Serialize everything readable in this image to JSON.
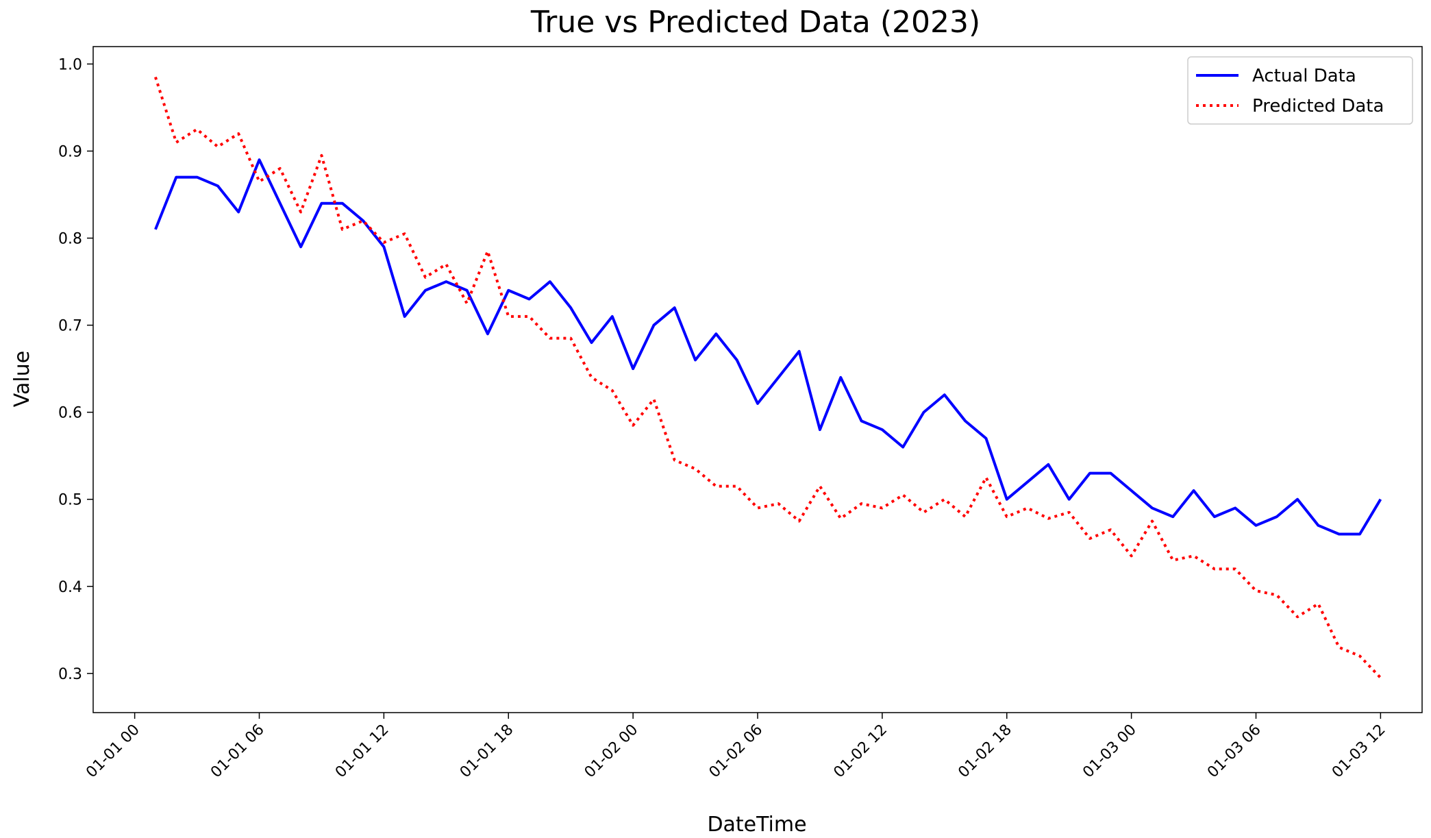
{
  "chart_data": {
    "type": "line",
    "title": "True vs Predicted Data (2023)",
    "xlabel": "DateTime",
    "ylabel": "Value",
    "x_tick_labels": [
      "01-01 00",
      "01-01 06",
      "01-01 12",
      "01-01 18",
      "01-02 00",
      "01-02 06",
      "01-02 12",
      "01-02 18",
      "01-03 00",
      "01-03 06",
      "01-03 12"
    ],
    "y_tick_labels": [
      "0.3",
      "0.4",
      "0.5",
      "0.6",
      "0.7",
      "0.8",
      "0.9",
      "1.0"
    ],
    "y_ticks": [
      0.3,
      0.4,
      0.5,
      0.6,
      0.7,
      0.8,
      0.9,
      1.0
    ],
    "x_start": "2023-01-01 01:00",
    "x_step_hours": 1,
    "ylim": [
      0.255,
      1.02
    ],
    "grid": false,
    "legend_position": "top-right",
    "series": [
      {
        "name": "Actual Data",
        "color": "#0000ff",
        "style": "solid",
        "values": [
          0.81,
          0.87,
          0.87,
          0.86,
          0.83,
          0.89,
          0.84,
          0.79,
          0.84,
          0.84,
          0.82,
          0.79,
          0.71,
          0.74,
          0.75,
          0.74,
          0.69,
          0.74,
          0.73,
          0.75,
          0.72,
          0.68,
          0.71,
          0.65,
          0.7,
          0.72,
          0.66,
          0.69,
          0.66,
          0.61,
          0.64,
          0.67,
          0.58,
          0.64,
          0.59,
          0.58,
          0.56,
          0.6,
          0.62,
          0.59,
          0.57,
          0.5,
          0.52,
          0.54,
          0.5,
          0.53,
          0.53,
          0.51,
          0.49,
          0.48,
          0.51,
          0.48,
          0.49,
          0.47,
          0.48,
          0.5,
          0.47,
          0.46,
          0.46,
          0.5
        ]
      },
      {
        "name": "Predicted Data",
        "color": "#ff0000",
        "style": "dotted",
        "values": [
          0.985,
          0.91,
          0.925,
          0.905,
          0.92,
          0.865,
          0.88,
          0.83,
          0.895,
          0.81,
          0.82,
          0.795,
          0.805,
          0.755,
          0.77,
          0.725,
          0.785,
          0.71,
          0.71,
          0.685,
          0.685,
          0.64,
          0.625,
          0.585,
          0.615,
          0.545,
          0.535,
          0.515,
          0.515,
          0.49,
          0.495,
          0.475,
          0.515,
          0.478,
          0.495,
          0.49,
          0.505,
          0.485,
          0.5,
          0.48,
          0.525,
          0.48,
          0.49,
          0.478,
          0.485,
          0.455,
          0.465,
          0.435,
          0.475,
          0.43,
          0.435,
          0.42,
          0.42,
          0.395,
          0.39,
          0.365,
          0.38,
          0.33,
          0.32,
          0.295
        ]
      }
    ]
  }
}
